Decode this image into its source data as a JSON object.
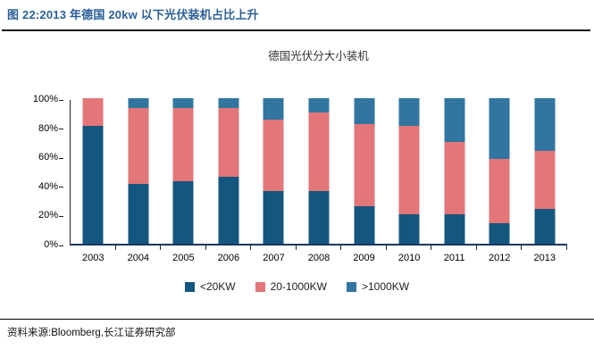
{
  "figure": {
    "heading": "图 22:2013 年德国 20kw 以下光伏装机占比上升"
  },
  "footer": {
    "source": "资料来源:Bloomberg,长江证券研究部"
  },
  "colors": {
    "heading_blue": "#2A5F96",
    "series_lt20kw": "#15567E",
    "series_20_1000kw": "#E27678",
    "series_gt1000kw": "#3175A0",
    "axis": "#17375E"
  },
  "chart_data": {
    "type": "bar",
    "stacked": true,
    "title": "德国光伏分大小装机",
    "categories": [
      "2003",
      "2004",
      "2005",
      "2006",
      "2007",
      "2008",
      "2009",
      "2010",
      "2011",
      "2012",
      "2013"
    ],
    "series": [
      {
        "name": "<20KW",
        "color": "#15567E",
        "values": [
          81,
          41,
          43,
          46,
          36,
          36,
          26,
          20,
          20,
          14,
          24
        ]
      },
      {
        "name": "20-1000KW",
        "color": "#E27678",
        "values": [
          19,
          52,
          50,
          47,
          49,
          54,
          56,
          61,
          50,
          44,
          40
        ]
      },
      {
        "name": ">1000KW",
        "color": "#3175A0",
        "values": [
          0,
          7,
          7,
          7,
          15,
          10,
          18,
          19,
          30,
          42,
          36
        ]
      }
    ],
    "xlabel": "",
    "ylabel": "",
    "ylim": [
      0,
      100
    ],
    "y_ticks": [
      "0%",
      "20%",
      "40%",
      "60%",
      "80%",
      "100%"
    ],
    "y_tick_step_pct": 20,
    "grid": false,
    "legend_position": "bottom"
  }
}
